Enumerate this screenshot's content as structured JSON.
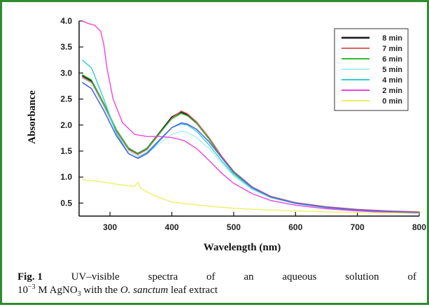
{
  "chart_data": {
    "type": "line",
    "xlabel": "Wavelength (nm)",
    "ylabel": "Absorbance",
    "xlim": [
      250,
      800
    ],
    "ylim": [
      0.25,
      4.0
    ],
    "x_ticks": [
      300,
      400,
      500,
      600,
      700,
      800
    ],
    "y_ticks": [
      0.5,
      1.0,
      1.5,
      2.0,
      2.5,
      3.0,
      3.5,
      4.0
    ],
    "y_tick_labels": [
      "0.5",
      "1.0",
      "1.5",
      "2.0",
      "2.5",
      "3.0",
      "3.5",
      "4.0"
    ],
    "grid": false,
    "legend_position": "top-right",
    "series": [
      {
        "name": "8 min",
        "color": "#222222",
        "width": 2.2,
        "x": [
          255,
          270,
          290,
          310,
          330,
          345,
          360,
          380,
          400,
          415,
          425,
          440,
          460,
          480,
          500,
          530,
          560,
          600,
          650,
          700,
          750,
          800
        ],
        "y": [
          2.95,
          2.85,
          2.4,
          1.9,
          1.55,
          1.45,
          1.55,
          1.85,
          2.15,
          2.25,
          2.2,
          2.05,
          1.75,
          1.4,
          1.1,
          0.8,
          0.62,
          0.5,
          0.42,
          0.37,
          0.34,
          0.32
        ]
      },
      {
        "name": "7 min",
        "color": "#e06060",
        "width": 1.4,
        "x": [
          255,
          270,
          290,
          310,
          330,
          345,
          360,
          380,
          400,
          415,
          425,
          440,
          460,
          480,
          500,
          530,
          560,
          600,
          650,
          700,
          750,
          800
        ],
        "y": [
          2.92,
          2.82,
          2.38,
          1.88,
          1.53,
          1.43,
          1.53,
          1.83,
          2.13,
          2.27,
          2.22,
          2.06,
          1.76,
          1.41,
          1.11,
          0.81,
          0.63,
          0.51,
          0.43,
          0.38,
          0.35,
          0.33
        ]
      },
      {
        "name": "6 min",
        "color": "#33bb33",
        "width": 1.4,
        "x": [
          255,
          270,
          290,
          310,
          330,
          345,
          360,
          380,
          400,
          415,
          425,
          440,
          460,
          480,
          500,
          530,
          560,
          600,
          650,
          700,
          750,
          800
        ],
        "y": [
          2.97,
          2.87,
          2.42,
          1.92,
          1.56,
          1.45,
          1.55,
          1.84,
          2.12,
          2.22,
          2.18,
          2.03,
          1.73,
          1.38,
          1.08,
          0.79,
          0.61,
          0.5,
          0.41,
          0.36,
          0.33,
          0.31
        ]
      },
      {
        "name": "5 min",
        "color": "#aaeeee",
        "width": 1.4,
        "x": [
          255,
          270,
          290,
          310,
          330,
          345,
          360,
          380,
          400,
          415,
          425,
          440,
          460,
          480,
          500,
          530,
          560,
          600,
          650,
          700,
          750,
          800
        ],
        "y": [
          2.9,
          2.8,
          2.35,
          1.86,
          1.5,
          1.4,
          1.45,
          1.65,
          1.82,
          1.88,
          1.86,
          1.76,
          1.55,
          1.28,
          1.02,
          0.76,
          0.6,
          0.49,
          0.41,
          0.36,
          0.33,
          0.31
        ]
      },
      {
        "name": "4 min",
        "color": "#33cccc",
        "width": 1.4,
        "x": [
          255,
          270,
          290,
          310,
          330,
          345,
          360,
          380,
          400,
          415,
          425,
          440,
          460,
          480,
          500,
          530,
          560,
          600,
          650,
          700,
          750,
          800
        ],
        "y": [
          3.25,
          3.1,
          2.5,
          1.85,
          1.45,
          1.37,
          1.48,
          1.72,
          1.95,
          2.02,
          2.0,
          1.88,
          1.62,
          1.32,
          1.05,
          0.78,
          0.61,
          0.49,
          0.41,
          0.36,
          0.33,
          0.31
        ]
      },
      {
        "name": "2 min",
        "color": "#ee44dd",
        "width": 1.4,
        "x": [
          255,
          265,
          275,
          285,
          290,
          295,
          305,
          320,
          340,
          360,
          380,
          400,
          420,
          440,
          460,
          480,
          500,
          530,
          560,
          600,
          650,
          700,
          750,
          800
        ],
        "y": [
          4.0,
          3.95,
          3.92,
          3.8,
          3.55,
          3.1,
          2.5,
          2.05,
          1.82,
          1.78,
          1.78,
          1.76,
          1.7,
          1.55,
          1.32,
          1.08,
          0.88,
          0.68,
          0.55,
          0.46,
          0.39,
          0.35,
          0.32,
          0.3
        ]
      },
      {
        "name": "0 min",
        "color": "#eeee66",
        "width": 1.4,
        "x": [
          255,
          280,
          300,
          320,
          340,
          345,
          350,
          370,
          400,
          450,
          500,
          550,
          600,
          650,
          700,
          750,
          800
        ],
        "y": [
          0.95,
          0.92,
          0.88,
          0.85,
          0.82,
          0.9,
          0.78,
          0.65,
          0.52,
          0.45,
          0.4,
          0.37,
          0.35,
          0.33,
          0.32,
          0.31,
          0.3
        ]
      },
      {
        "name": "",
        "color": "#5566dd",
        "width": 1.6,
        "x": [
          255,
          270,
          290,
          310,
          330,
          345,
          360,
          380,
          400,
          415,
          425,
          440,
          460,
          480,
          500,
          530,
          560,
          600,
          650,
          700,
          750,
          800
        ],
        "y": [
          2.82,
          2.7,
          2.28,
          1.8,
          1.45,
          1.36,
          1.45,
          1.7,
          1.95,
          2.04,
          2.02,
          1.92,
          1.68,
          1.38,
          1.1,
          0.8,
          0.62,
          0.5,
          0.42,
          0.37,
          0.34,
          0.32
        ]
      }
    ]
  },
  "caption": {
    "fig_label": "Fig. 1",
    "words_line1": [
      "UV–visible",
      "spectra",
      "of",
      "an",
      "aqueous",
      "solution",
      "of"
    ],
    "line2_base": "10",
    "line2_exp": "−3",
    "line2_mid": " M AgNO",
    "line2_sub": "3",
    "line2_with": " with the ",
    "line2_species": "O. sanctum",
    "line2_end": " leaf extract"
  }
}
